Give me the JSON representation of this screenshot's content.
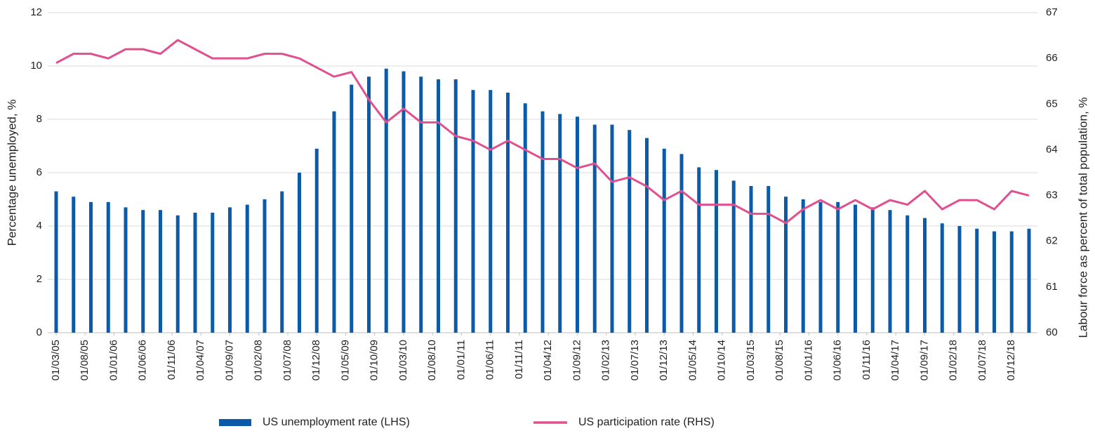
{
  "chart_data": {
    "type": "bar_line",
    "x": [
      "2005-03-01",
      "2005-06-01",
      "2005-09-01",
      "2005-12-01",
      "2006-03-01",
      "2006-06-01",
      "2006-09-01",
      "2006-12-01",
      "2007-03-01",
      "2007-06-01",
      "2007-09-01",
      "2007-12-01",
      "2008-03-01",
      "2008-06-01",
      "2008-09-01",
      "2008-12-01",
      "2009-03-01",
      "2009-06-01",
      "2009-09-01",
      "2009-12-01",
      "2010-03-01",
      "2010-06-01",
      "2010-09-01",
      "2010-12-01",
      "2011-03-01",
      "2011-06-01",
      "2011-09-01",
      "2011-12-01",
      "2012-03-01",
      "2012-06-01",
      "2012-09-01",
      "2012-12-01",
      "2013-03-01",
      "2013-06-01",
      "2013-09-01",
      "2013-12-01",
      "2014-03-01",
      "2014-06-01",
      "2014-09-01",
      "2014-12-01",
      "2015-03-01",
      "2015-06-01",
      "2015-09-01",
      "2015-12-01",
      "2016-03-01",
      "2016-06-01",
      "2016-09-01",
      "2016-12-01",
      "2017-03-01",
      "2017-06-01",
      "2017-09-01",
      "2017-12-01",
      "2018-03-01",
      "2018-06-01",
      "2018-09-01",
      "2018-12-01",
      "2019-03-01"
    ],
    "xticks": [
      {
        "value": "2005-03-01",
        "label": "01/03/05"
      },
      {
        "value": "2005-08-01",
        "label": "01/08/05"
      },
      {
        "value": "2006-01-01",
        "label": "01/01/06"
      },
      {
        "value": "2006-06-01",
        "label": "01/06/06"
      },
      {
        "value": "2006-11-01",
        "label": "01/11/06"
      },
      {
        "value": "2007-04-01",
        "label": "01/04/07"
      },
      {
        "value": "2007-09-01",
        "label": "01/09/07"
      },
      {
        "value": "2008-02-01",
        "label": "01/02/08"
      },
      {
        "value": "2008-07-01",
        "label": "01/07/08"
      },
      {
        "value": "2008-12-01",
        "label": "01/12/08"
      },
      {
        "value": "2009-05-01",
        "label": "01/05/09"
      },
      {
        "value": "2009-10-01",
        "label": "01/10/09"
      },
      {
        "value": "2010-03-01",
        "label": "01/03/10"
      },
      {
        "value": "2010-08-01",
        "label": "01/08/10"
      },
      {
        "value": "2011-01-01",
        "label": "01/01/11"
      },
      {
        "value": "2011-06-01",
        "label": "01/06/11"
      },
      {
        "value": "2011-11-01",
        "label": "01/11/11"
      },
      {
        "value": "2012-04-01",
        "label": "01/04/12"
      },
      {
        "value": "2012-09-01",
        "label": "01/09/12"
      },
      {
        "value": "2013-02-01",
        "label": "01/02/13"
      },
      {
        "value": "2013-07-01",
        "label": "01/07/13"
      },
      {
        "value": "2013-12-01",
        "label": "01/12/13"
      },
      {
        "value": "2014-05-01",
        "label": "01/05/14"
      },
      {
        "value": "2014-10-01",
        "label": "01/10/14"
      },
      {
        "value": "2015-03-01",
        "label": "01/03/15"
      },
      {
        "value": "2015-08-01",
        "label": "01/08/15"
      },
      {
        "value": "2016-01-01",
        "label": "01/01/16"
      },
      {
        "value": "2016-06-01",
        "label": "01/06/16"
      },
      {
        "value": "2016-11-01",
        "label": "01/11/16"
      },
      {
        "value": "2017-04-01",
        "label": "01/04/17"
      },
      {
        "value": "2017-09-01",
        "label": "01/09/17"
      },
      {
        "value": "2018-02-01",
        "label": "01/02/18"
      },
      {
        "value": "2018-07-01",
        "label": "01/07/18"
      },
      {
        "value": "2018-12-01",
        "label": "01/12/18"
      }
    ],
    "ylabel": "Percentage unemployed, %",
    "y2label": "Labour force as percent of total population, %",
    "ylim": [
      0,
      12
    ],
    "yticks": [
      0,
      2,
      4,
      6,
      8,
      10,
      12
    ],
    "y2lim": [
      60,
      67
    ],
    "y2ticks": [
      60,
      61,
      62,
      63,
      64,
      65,
      66,
      67
    ],
    "grid": true,
    "legend": "bottom",
    "series": [
      {
        "name": "US unemployment rate (LHS)",
        "type": "bar",
        "color": "#0b5ba8",
        "values": [
          5.3,
          5.1,
          4.9,
          4.9,
          4.7,
          4.6,
          4.6,
          4.4,
          4.5,
          4.5,
          4.7,
          4.8,
          5.0,
          5.3,
          6.0,
          6.9,
          8.3,
          9.3,
          9.6,
          9.9,
          9.8,
          9.6,
          9.5,
          9.5,
          9.1,
          9.1,
          9.0,
          8.6,
          8.3,
          8.2,
          8.1,
          7.8,
          7.8,
          7.6,
          7.3,
          6.9,
          6.7,
          6.2,
          6.1,
          5.7,
          5.5,
          5.5,
          5.1,
          5.0,
          4.9,
          4.9,
          4.8,
          4.7,
          4.6,
          4.4,
          4.3,
          4.1,
          4.0,
          3.9,
          3.8,
          3.8,
          3.9
        ]
      },
      {
        "name": "US participation rate (RHS)",
        "type": "line",
        "axis": "y2",
        "color": "#e0508f",
        "values": [
          65.9,
          66.1,
          66.1,
          66.0,
          66.2,
          66.2,
          66.1,
          66.4,
          66.2,
          66.0,
          66.0,
          66.0,
          66.1,
          66.1,
          66.0,
          65.8,
          65.6,
          65.7,
          65.1,
          64.6,
          64.9,
          64.6,
          64.6,
          64.3,
          64.2,
          64.0,
          64.2,
          64.0,
          63.8,
          63.8,
          63.6,
          63.7,
          63.3,
          63.4,
          63.2,
          62.9,
          63.1,
          62.8,
          62.8,
          62.8,
          62.6,
          62.6,
          62.4,
          62.7,
          62.9,
          62.7,
          62.9,
          62.7,
          62.9,
          62.8,
          63.1,
          62.7,
          62.9,
          62.9,
          62.7,
          63.1,
          63.0
        ]
      }
    ]
  }
}
